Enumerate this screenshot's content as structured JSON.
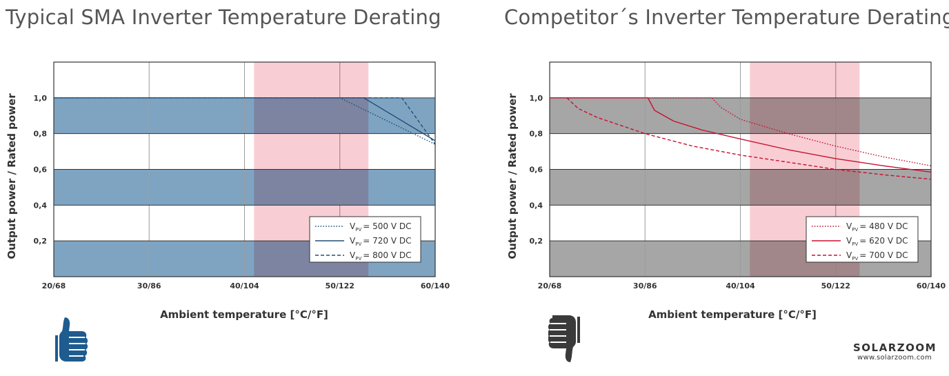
{
  "logo": {
    "name": "SOLARZOOM",
    "url": "www.solarzoom.com"
  },
  "icons": {
    "left": "thumbs-up-icon",
    "right": "thumbs-down-icon"
  },
  "colors": {
    "sma_band": "#7fa4c2",
    "competitor_band": "#a6a6a6",
    "highlight": "#f7c5cc",
    "sma_line": "#1f4e79",
    "competitor_line": "#c8102e",
    "thumb_up": "#1e5b8f",
    "thumb_down": "#3a3a3a"
  },
  "chart_data": [
    {
      "type": "line",
      "title": "Typical SMA Inverter Temperature Derating",
      "xlabel": "Ambient temperature [°C/°F]",
      "ylabel": "Output power / Rated power",
      "x_tick_labels": [
        "20/68",
        "30/86",
        "40/104",
        "50/122",
        "60/140"
      ],
      "x_ticks": [
        20,
        30,
        40,
        50,
        60
      ],
      "xlim": [
        20,
        60
      ],
      "y_tick_labels": [
        "0,2",
        "0,4",
        "0,6",
        "0,8",
        "1,0"
      ],
      "y_ticks": [
        0.2,
        0.4,
        0.6,
        0.8,
        1.0
      ],
      "ylim": [
        0,
        1.2
      ],
      "highlight_range": [
        41,
        53
      ],
      "legend_position": "bottom-right",
      "series": [
        {
          "name": "500 V DC",
          "vpv_prefix": "V",
          "vpv_sub": "PV",
          "vpv_suffix": "= 500 V DC",
          "style": "dotted",
          "x": [
            20,
            50,
            60
          ],
          "y": [
            1.0,
            1.0,
            0.74
          ]
        },
        {
          "name": "720 V DC",
          "vpv_prefix": "V",
          "vpv_sub": "PV",
          "vpv_suffix": "= 720 V DC",
          "style": "solid",
          "x": [
            20,
            52.5,
            60
          ],
          "y": [
            1.0,
            1.0,
            0.76
          ]
        },
        {
          "name": "800 V DC",
          "vpv_prefix": "V",
          "vpv_sub": "PV",
          "vpv_suffix": "= 800 V DC",
          "style": "dashed",
          "x": [
            20,
            56.5,
            60
          ],
          "y": [
            1.0,
            1.0,
            0.74
          ]
        }
      ]
    },
    {
      "type": "line",
      "title": "Competitor´s Inverter Temperature Derating",
      "xlabel": "Ambient temperature [°C/°F]",
      "ylabel": "Output power / Rated power",
      "x_tick_labels": [
        "20/68",
        "30/86",
        "40/104",
        "50/122",
        "60/140"
      ],
      "x_ticks": [
        20,
        30,
        40,
        50,
        60
      ],
      "xlim": [
        20,
        60
      ],
      "y_tick_labels": [
        "0,2",
        "0,4",
        "0,6",
        "0,8",
        "1,0"
      ],
      "y_ticks": [
        0.2,
        0.4,
        0.6,
        0.8,
        1.0
      ],
      "ylim": [
        0,
        1.2
      ],
      "highlight_range": [
        41,
        52.5
      ],
      "legend_position": "bottom-right",
      "series": [
        {
          "name": "480 V DC",
          "vpv_prefix": "V",
          "vpv_sub": "PV",
          "vpv_suffix": "= 480 V DC",
          "style": "dotted",
          "x": [
            20,
            37,
            38,
            40,
            45,
            50,
            55,
            60
          ],
          "y": [
            1.0,
            1.0,
            0.945,
            0.88,
            0.8,
            0.73,
            0.67,
            0.62
          ]
        },
        {
          "name": "620 V DC",
          "vpv_prefix": "V",
          "vpv_sub": "PV",
          "vpv_suffix": "= 620 V DC",
          "style": "solid",
          "x": [
            20,
            30.3,
            31,
            33,
            36,
            40,
            45,
            50,
            55,
            60
          ],
          "y": [
            1.0,
            1.0,
            0.93,
            0.87,
            0.82,
            0.77,
            0.71,
            0.66,
            0.62,
            0.585
          ]
        },
        {
          "name": "700 V DC",
          "vpv_prefix": "V",
          "vpv_sub": "PV",
          "vpv_suffix": "= 700 V DC",
          "style": "dashed",
          "x": [
            21.8,
            23,
            25,
            30,
            35,
            40,
            45,
            50,
            55,
            60
          ],
          "y": [
            1.0,
            0.94,
            0.89,
            0.8,
            0.73,
            0.68,
            0.64,
            0.6,
            0.57,
            0.545
          ]
        }
      ]
    }
  ]
}
